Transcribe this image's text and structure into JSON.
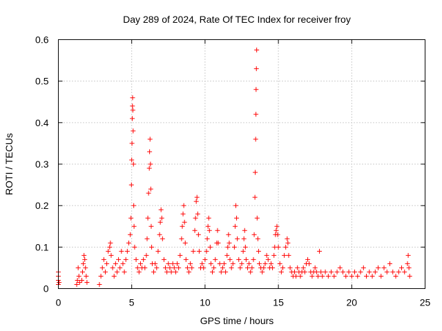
{
  "chart_data": {
    "type": "scatter",
    "title": "Day 289 of 2024, Rate Of TEC Index for receiver froy",
    "xlabel": "GPS time / hours",
    "ylabel": "ROTI / TECUs",
    "xlim": [
      0,
      25
    ],
    "ylim": [
      0,
      0.6
    ],
    "xticks": [
      0,
      5,
      10,
      15,
      20,
      25
    ],
    "xtick_labels": [
      "0",
      "5",
      "10",
      "15",
      "20",
      "25"
    ],
    "yticks": [
      0,
      0.1,
      0.2,
      0.3,
      0.4,
      0.5,
      0.6
    ],
    "ytick_labels": [
      "0",
      "0.1",
      "0.2",
      "0.3",
      "0.4",
      "0.5",
      "0.6"
    ],
    "grid": true,
    "marker": "plus",
    "color": "#ff0000",
    "series": [
      {
        "name": "ROTI",
        "points": [
          [
            0.0,
            0.01
          ],
          [
            0.0,
            0.02
          ],
          [
            0.0,
            0.03
          ],
          [
            0.0,
            0.04
          ],
          [
            0.05,
            0.015
          ],
          [
            1.25,
            0.01
          ],
          [
            1.3,
            0.02
          ],
          [
            1.35,
            0.05
          ],
          [
            1.4,
            0.03
          ],
          [
            1.45,
            0.015
          ],
          [
            1.6,
            0.02
          ],
          [
            1.65,
            0.04
          ],
          [
            1.7,
            0.06
          ],
          [
            1.75,
            0.08
          ],
          [
            1.8,
            0.07
          ],
          [
            1.85,
            0.05
          ],
          [
            1.9,
            0.03
          ],
          [
            1.95,
            0.015
          ],
          [
            2.8,
            0.01
          ],
          [
            2.9,
            0.03
          ],
          [
            3.0,
            0.05
          ],
          [
            3.1,
            0.07
          ],
          [
            3.2,
            0.04
          ],
          [
            3.3,
            0.06
          ],
          [
            3.4,
            0.09
          ],
          [
            3.5,
            0.1
          ],
          [
            3.55,
            0.11
          ],
          [
            3.6,
            0.08
          ],
          [
            3.7,
            0.05
          ],
          [
            3.8,
            0.03
          ],
          [
            3.9,
            0.06
          ],
          [
            4.0,
            0.04
          ],
          [
            4.1,
            0.07
          ],
          [
            4.2,
            0.05
          ],
          [
            4.3,
            0.09
          ],
          [
            4.4,
            0.06
          ],
          [
            4.5,
            0.04
          ],
          [
            4.6,
            0.07
          ],
          [
            4.7,
            0.09
          ],
          [
            4.8,
            0.11
          ],
          [
            4.9,
            0.13
          ],
          [
            4.95,
            0.17
          ],
          [
            4.98,
            0.25
          ],
          [
            5.0,
            0.31
          ],
          [
            5.02,
            0.35
          ],
          [
            5.04,
            0.41
          ],
          [
            5.05,
            0.44
          ],
          [
            5.06,
            0.46
          ],
          [
            5.08,
            0.43
          ],
          [
            5.1,
            0.38
          ],
          [
            5.12,
            0.3
          ],
          [
            5.14,
            0.2
          ],
          [
            5.16,
            0.15
          ],
          [
            5.2,
            0.1
          ],
          [
            5.3,
            0.07
          ],
          [
            5.4,
            0.05
          ],
          [
            5.5,
            0.04
          ],
          [
            5.6,
            0.06
          ],
          [
            5.7,
            0.05
          ],
          [
            5.8,
            0.07
          ],
          [
            5.9,
            0.05
          ],
          [
            6.0,
            0.08
          ],
          [
            6.05,
            0.12
          ],
          [
            6.1,
            0.17
          ],
          [
            6.15,
            0.23
          ],
          [
            6.2,
            0.29
          ],
          [
            6.22,
            0.33
          ],
          [
            6.25,
            0.36
          ],
          [
            6.28,
            0.3
          ],
          [
            6.3,
            0.24
          ],
          [
            6.33,
            0.15
          ],
          [
            6.36,
            0.1
          ],
          [
            6.4,
            0.06
          ],
          [
            6.5,
            0.04
          ],
          [
            6.6,
            0.06
          ],
          [
            6.7,
            0.05
          ],
          [
            6.8,
            0.09
          ],
          [
            6.9,
            0.13
          ],
          [
            6.95,
            0.16
          ],
          [
            7.0,
            0.19
          ],
          [
            7.05,
            0.17
          ],
          [
            7.1,
            0.12
          ],
          [
            7.2,
            0.07
          ],
          [
            7.3,
            0.05
          ],
          [
            7.4,
            0.04
          ],
          [
            7.5,
            0.06
          ],
          [
            7.6,
            0.05
          ],
          [
            7.7,
            0.04
          ],
          [
            7.8,
            0.06
          ],
          [
            7.9,
            0.05
          ],
          [
            8.0,
            0.04
          ],
          [
            8.1,
            0.06
          ],
          [
            8.2,
            0.05
          ],
          [
            8.3,
            0.08
          ],
          [
            8.4,
            0.12
          ],
          [
            8.45,
            0.15
          ],
          [
            8.5,
            0.18
          ],
          [
            8.55,
            0.2
          ],
          [
            8.6,
            0.16
          ],
          [
            8.65,
            0.11
          ],
          [
            8.7,
            0.07
          ],
          [
            8.8,
            0.05
          ],
          [
            8.9,
            0.04
          ],
          [
            9.0,
            0.06
          ],
          [
            9.1,
            0.05
          ],
          [
            9.2,
            0.09
          ],
          [
            9.3,
            0.14
          ],
          [
            9.35,
            0.17
          ],
          [
            9.4,
            0.21
          ],
          [
            9.45,
            0.22
          ],
          [
            9.5,
            0.18
          ],
          [
            9.55,
            0.13
          ],
          [
            9.6,
            0.09
          ],
          [
            9.7,
            0.05
          ],
          [
            9.8,
            0.06
          ],
          [
            9.9,
            0.05
          ],
          [
            10.0,
            0.07
          ],
          [
            10.1,
            0.09
          ],
          [
            10.15,
            0.12
          ],
          [
            10.2,
            0.15
          ],
          [
            10.25,
            0.17
          ],
          [
            10.3,
            0.14
          ],
          [
            10.35,
            0.1
          ],
          [
            10.4,
            0.06
          ],
          [
            10.5,
            0.04
          ],
          [
            10.6,
            0.05
          ],
          [
            10.7,
            0.07
          ],
          [
            10.8,
            0.11
          ],
          [
            10.85,
            0.14
          ],
          [
            10.9,
            0.11
          ],
          [
            11.0,
            0.06
          ],
          [
            11.1,
            0.04
          ],
          [
            11.2,
            0.05
          ],
          [
            11.3,
            0.06
          ],
          [
            11.4,
            0.04
          ],
          [
            11.5,
            0.08
          ],
          [
            11.55,
            0.1
          ],
          [
            11.6,
            0.13
          ],
          [
            11.65,
            0.11
          ],
          [
            11.7,
            0.07
          ],
          [
            11.8,
            0.05
          ],
          [
            11.9,
            0.06
          ],
          [
            12.0,
            0.1
          ],
          [
            12.05,
            0.15
          ],
          [
            12.1,
            0.2
          ],
          [
            12.15,
            0.17
          ],
          [
            12.2,
            0.12
          ],
          [
            12.3,
            0.07
          ],
          [
            12.4,
            0.05
          ],
          [
            12.5,
            0.06
          ],
          [
            12.6,
            0.09
          ],
          [
            12.65,
            0.12
          ],
          [
            12.7,
            0.14
          ],
          [
            12.75,
            0.1
          ],
          [
            12.8,
            0.07
          ],
          [
            12.9,
            0.05
          ],
          [
            13.0,
            0.06
          ],
          [
            13.1,
            0.04
          ],
          [
            13.2,
            0.05
          ],
          [
            13.3,
            0.07
          ],
          [
            13.35,
            0.13
          ],
          [
            13.4,
            0.22
          ],
          [
            13.42,
            0.28
          ],
          [
            13.45,
            0.36
          ],
          [
            13.47,
            0.42
          ],
          [
            13.48,
            0.48
          ],
          [
            13.5,
            0.53
          ],
          [
            13.52,
            0.575
          ],
          [
            13.55,
            0.17
          ],
          [
            13.6,
            0.12
          ],
          [
            13.65,
            0.09
          ],
          [
            13.7,
            0.06
          ],
          [
            13.8,
            0.05
          ],
          [
            13.9,
            0.04
          ],
          [
            14.0,
            0.05
          ],
          [
            14.1,
            0.06
          ],
          [
            14.2,
            0.08
          ],
          [
            14.3,
            0.07
          ],
          [
            14.4,
            0.05
          ],
          [
            14.5,
            0.06
          ],
          [
            14.6,
            0.05
          ],
          [
            14.7,
            0.08
          ],
          [
            14.75,
            0.1
          ],
          [
            14.8,
            0.13
          ],
          [
            14.85,
            0.14
          ],
          [
            14.9,
            0.15
          ],
          [
            14.95,
            0.13
          ],
          [
            15.0,
            0.1
          ],
          [
            15.1,
            0.06
          ],
          [
            15.2,
            0.04
          ],
          [
            15.3,
            0.05
          ],
          [
            15.4,
            0.08
          ],
          [
            15.5,
            0.1
          ],
          [
            15.6,
            0.12
          ],
          [
            15.65,
            0.11
          ],
          [
            15.7,
            0.08
          ],
          [
            15.8,
            0.05
          ],
          [
            15.9,
            0.04
          ],
          [
            16.0,
            0.03
          ],
          [
            16.1,
            0.04
          ],
          [
            16.2,
            0.03
          ],
          [
            16.3,
            0.05
          ],
          [
            16.4,
            0.04
          ],
          [
            16.5,
            0.03
          ],
          [
            16.6,
            0.04
          ],
          [
            16.7,
            0.05
          ],
          [
            16.8,
            0.04
          ],
          [
            16.9,
            0.06
          ],
          [
            17.0,
            0.07
          ],
          [
            17.1,
            0.06
          ],
          [
            17.2,
            0.04
          ],
          [
            17.3,
            0.03
          ],
          [
            17.4,
            0.04
          ],
          [
            17.5,
            0.05
          ],
          [
            17.6,
            0.04
          ],
          [
            17.7,
            0.03
          ],
          [
            17.8,
            0.09
          ],
          [
            17.9,
            0.04
          ],
          [
            18.0,
            0.03
          ],
          [
            18.2,
            0.04
          ],
          [
            18.4,
            0.03
          ],
          [
            18.6,
            0.04
          ],
          [
            18.8,
            0.03
          ],
          [
            19.0,
            0.04
          ],
          [
            19.2,
            0.05
          ],
          [
            19.4,
            0.04
          ],
          [
            19.6,
            0.03
          ],
          [
            19.8,
            0.04
          ],
          [
            20.0,
            0.03
          ],
          [
            20.2,
            0.04
          ],
          [
            20.4,
            0.03
          ],
          [
            20.6,
            0.04
          ],
          [
            20.8,
            0.05
          ],
          [
            21.0,
            0.03
          ],
          [
            21.2,
            0.04
          ],
          [
            21.4,
            0.03
          ],
          [
            21.6,
            0.04
          ],
          [
            21.8,
            0.05
          ],
          [
            22.0,
            0.03
          ],
          [
            22.2,
            0.05
          ],
          [
            22.4,
            0.04
          ],
          [
            22.6,
            0.06
          ],
          [
            22.8,
            0.04
          ],
          [
            23.0,
            0.03
          ],
          [
            23.2,
            0.04
          ],
          [
            23.4,
            0.05
          ],
          [
            23.6,
            0.04
          ],
          [
            23.8,
            0.06
          ],
          [
            23.85,
            0.08
          ],
          [
            23.9,
            0.05
          ],
          [
            23.95,
            0.03
          ]
        ]
      }
    ]
  }
}
